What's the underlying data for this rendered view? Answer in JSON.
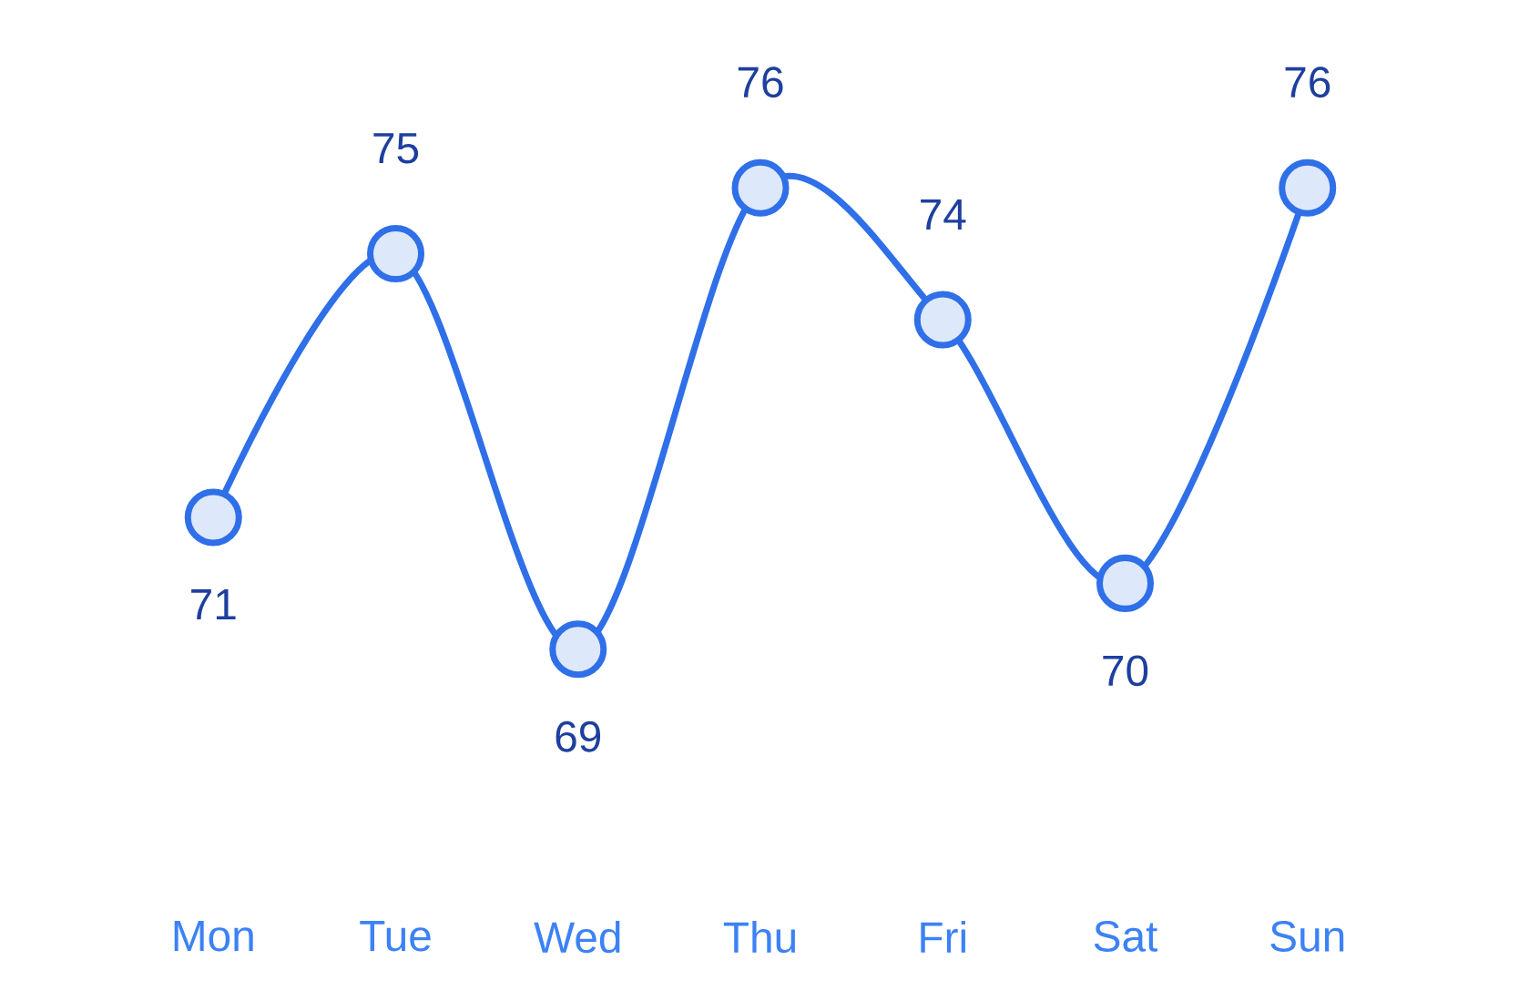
{
  "chart_data": {
    "type": "line",
    "categories": [
      "Mon",
      "Tue",
      "Wed",
      "Thu",
      "Fri",
      "Sat",
      "Sun"
    ],
    "values": [
      71,
      75,
      69,
      76,
      74,
      70,
      76
    ],
    "color": "#2f6fe8",
    "marker": "circle",
    "data_labels": true
  }
}
